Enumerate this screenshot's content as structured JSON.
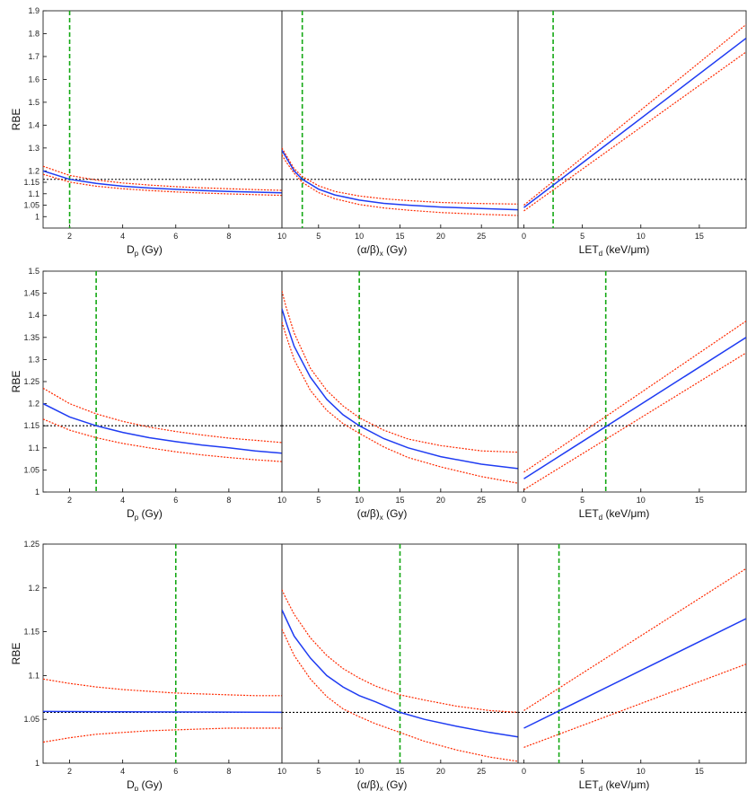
{
  "chart_data": [
    {
      "type": "line",
      "ylabel": "RBE",
      "ylim": [
        0.95,
        1.9
      ],
      "yticks": [
        "1",
        "1.05",
        "1.1",
        "1.15",
        "1.2",
        "1.3",
        "1.4",
        "1.5",
        "1.6",
        "1.7",
        "1.8",
        "1.9"
      ],
      "yticks_v": [
        1,
        1.05,
        1.1,
        1.15,
        1.2,
        1.3,
        1.4,
        1.5,
        1.6,
        1.7,
        1.8,
        1.9
      ],
      "rbe_ref": 1.163,
      "panels": [
        {
          "xlabel": "Dp (Gy)",
          "xlim": [
            1,
            10
          ],
          "xticks": [
            "2",
            "4",
            "6",
            "8",
            "10"
          ],
          "xticks_v": [
            2,
            4,
            6,
            8,
            10
          ],
          "x_marker": 2,
          "series": [
            {
              "role": "mean",
              "x": [
                1,
                2,
                3,
                4,
                5,
                6,
                7,
                8,
                9,
                10
              ],
              "y": [
                1.2,
                1.163,
                1.145,
                1.133,
                1.125,
                1.119,
                1.114,
                1.11,
                1.107,
                1.104
              ]
            },
            {
              "role": "upper",
              "x": [
                1,
                2,
                3,
                4,
                5,
                6,
                7,
                8,
                9,
                10
              ],
              "y": [
                1.22,
                1.18,
                1.16,
                1.147,
                1.138,
                1.131,
                1.126,
                1.122,
                1.118,
                1.115
              ]
            },
            {
              "role": "lower",
              "x": [
                1,
                2,
                3,
                4,
                5,
                6,
                7,
                8,
                9,
                10
              ],
              "y": [
                1.185,
                1.151,
                1.133,
                1.122,
                1.114,
                1.108,
                1.103,
                1.099,
                1.096,
                1.093
              ]
            }
          ]
        },
        {
          "xlabel": "(α/β)x (Gy)",
          "xlim": [
            0.5,
            29.5
          ],
          "xticks": [
            "5",
            "10",
            "15",
            "20",
            "25"
          ],
          "xticks_v": [
            5,
            10,
            15,
            20,
            25
          ],
          "x_marker": 3,
          "series": [
            {
              "role": "mean",
              "x": [
                0.5,
                1,
                2,
                3,
                5,
                7,
                10,
                13,
                16,
                20,
                25,
                29.5
              ],
              "y": [
                1.29,
                1.26,
                1.2,
                1.163,
                1.12,
                1.095,
                1.072,
                1.058,
                1.05,
                1.042,
                1.035,
                1.03
              ]
            },
            {
              "role": "upper",
              "x": [
                0.5,
                1,
                2,
                3,
                5,
                7,
                10,
                13,
                16,
                20,
                25,
                29.5
              ],
              "y": [
                1.3,
                1.27,
                1.21,
                1.175,
                1.135,
                1.11,
                1.09,
                1.078,
                1.07,
                1.062,
                1.057,
                1.055
              ]
            },
            {
              "role": "lower",
              "x": [
                0.5,
                1,
                2,
                3,
                5,
                7,
                10,
                13,
                16,
                20,
                25,
                29.5
              ],
              "y": [
                1.27,
                1.24,
                1.19,
                1.15,
                1.105,
                1.078,
                1.053,
                1.038,
                1.028,
                1.018,
                1.01,
                1.005
              ]
            }
          ]
        },
        {
          "xlabel": "LETd (keV/μm)",
          "xlim": [
            -0.5,
            19
          ],
          "xticks": [
            "0",
            "5",
            "10",
            "15"
          ],
          "xticks_v": [
            0,
            5,
            10,
            15
          ],
          "x_marker": 2.5,
          "series": [
            {
              "role": "mean",
              "x": [
                0,
                19
              ],
              "y": [
                1.04,
                1.78
              ]
            },
            {
              "role": "upper",
              "x": [
                0,
                19
              ],
              "y": [
                1.05,
                1.84
              ]
            },
            {
              "role": "lower",
              "x": [
                0,
                19
              ],
              "y": [
                1.025,
                1.72
              ]
            }
          ]
        }
      ]
    },
    {
      "type": "line",
      "ylabel": "RBE",
      "ylim": [
        1,
        1.5
      ],
      "yticks": [
        "1",
        "1.05",
        "1.1",
        "1.15",
        "1.2",
        "1.25",
        "1.3",
        "1.35",
        "1.4",
        "1.45",
        "1.5"
      ],
      "yticks_v": [
        1,
        1.05,
        1.1,
        1.15,
        1.2,
        1.25,
        1.3,
        1.35,
        1.4,
        1.45,
        1.5
      ],
      "rbe_ref": 1.15,
      "panels": [
        {
          "xlabel": "Dp (Gy)",
          "xlim": [
            1,
            10
          ],
          "xticks": [
            "2",
            "4",
            "6",
            "8",
            "10"
          ],
          "xticks_v": [
            2,
            4,
            6,
            8,
            10
          ],
          "x_marker": 3,
          "series": [
            {
              "role": "mean",
              "x": [
                1,
                2,
                3,
                4,
                5,
                6,
                7,
                8,
                9,
                10
              ],
              "y": [
                1.2,
                1.17,
                1.15,
                1.135,
                1.123,
                1.114,
                1.106,
                1.1,
                1.093,
                1.088
              ]
            },
            {
              "role": "upper",
              "x": [
                1,
                2,
                3,
                4,
                5,
                6,
                7,
                8,
                9,
                10
              ],
              "y": [
                1.235,
                1.2,
                1.177,
                1.16,
                1.147,
                1.137,
                1.129,
                1.122,
                1.117,
                1.112
              ]
            },
            {
              "role": "lower",
              "x": [
                1,
                2,
                3,
                4,
                5,
                6,
                7,
                8,
                9,
                10
              ],
              "y": [
                1.165,
                1.14,
                1.123,
                1.11,
                1.1,
                1.091,
                1.084,
                1.078,
                1.073,
                1.069
              ]
            }
          ]
        },
        {
          "xlabel": "(α/β)x (Gy)",
          "xlim": [
            0.5,
            29.5
          ],
          "xticks": [
            "5",
            "10",
            "15",
            "20",
            "25"
          ],
          "xticks_v": [
            5,
            10,
            15,
            20,
            25
          ],
          "x_marker": 10,
          "series": [
            {
              "role": "mean",
              "x": [
                0.5,
                1,
                2,
                4,
                6,
                8,
                10,
                13,
                16,
                20,
                25,
                29.5
              ],
              "y": [
                1.415,
                1.385,
                1.33,
                1.26,
                1.21,
                1.175,
                1.15,
                1.121,
                1.1,
                1.08,
                1.063,
                1.053
              ]
            },
            {
              "role": "upper",
              "x": [
                0.5,
                1,
                2,
                4,
                6,
                8,
                10,
                13,
                16,
                20,
                25,
                29.5
              ],
              "y": [
                1.455,
                1.42,
                1.36,
                1.28,
                1.23,
                1.195,
                1.168,
                1.14,
                1.12,
                1.105,
                1.093,
                1.09
              ]
            },
            {
              "role": "lower",
              "x": [
                0.5,
                1,
                2,
                4,
                6,
                8,
                10,
                13,
                16,
                20,
                25,
                29.5
              ],
              "y": [
                1.385,
                1.355,
                1.3,
                1.23,
                1.185,
                1.155,
                1.133,
                1.102,
                1.078,
                1.057,
                1.035,
                1.02
              ]
            }
          ]
        },
        {
          "xlabel": "LETd (keV/μm)",
          "xlim": [
            -0.5,
            19
          ],
          "xticks": [
            "0",
            "5",
            "10",
            "15"
          ],
          "xticks_v": [
            0,
            5,
            10,
            15
          ],
          "x_marker": 7,
          "series": [
            {
              "role": "mean",
              "x": [
                0,
                19
              ],
              "y": [
                1.03,
                1.35
              ]
            },
            {
              "role": "upper",
              "x": [
                0,
                19
              ],
              "y": [
                1.045,
                1.387
              ]
            },
            {
              "role": "lower",
              "x": [
                0,
                19
              ],
              "y": [
                1.005,
                1.315
              ]
            }
          ]
        }
      ]
    },
    {
      "type": "line",
      "ylabel": "RBE",
      "ylim": [
        1,
        1.25
      ],
      "yticks": [
        "1",
        "1.05",
        "1.1",
        "1.15",
        "1.2",
        "1.25"
      ],
      "yticks_v": [
        1,
        1.05,
        1.1,
        1.15,
        1.2,
        1.25
      ],
      "rbe_ref": 1.058,
      "panels": [
        {
          "xlabel": "Dp (Gy)",
          "xlim": [
            1,
            10
          ],
          "xticks": [
            "2",
            "4",
            "6",
            "8",
            "10"
          ],
          "xticks_v": [
            2,
            4,
            6,
            8,
            10
          ],
          "x_marker": 6,
          "series": [
            {
              "role": "mean",
              "x": [
                1,
                10
              ],
              "y": [
                1.059,
                1.058
              ]
            },
            {
              "role": "upper",
              "x": [
                1,
                2,
                3,
                4,
                5,
                6,
                7,
                8,
                9,
                10
              ],
              "y": [
                1.096,
                1.091,
                1.087,
                1.084,
                1.082,
                1.08,
                1.079,
                1.078,
                1.077,
                1.077
              ]
            },
            {
              "role": "lower",
              "x": [
                1,
                2,
                3,
                4,
                5,
                6,
                7,
                8,
                9,
                10
              ],
              "y": [
                1.024,
                1.029,
                1.033,
                1.035,
                1.037,
                1.038,
                1.039,
                1.04,
                1.04,
                1.04
              ]
            }
          ]
        },
        {
          "xlabel": "(α/β)x (Gy)",
          "xlim": [
            0.5,
            29.5
          ],
          "xticks": [
            "5",
            "10",
            "15",
            "20",
            "25"
          ],
          "xticks_v": [
            5,
            10,
            15,
            20,
            25
          ],
          "x_marker": 15,
          "series": [
            {
              "role": "mean",
              "x": [
                0.5,
                1,
                2,
                4,
                6,
                8,
                10,
                12,
                15,
                18,
                22,
                26,
                29.5
              ],
              "y": [
                1.175,
                1.165,
                1.145,
                1.12,
                1.1,
                1.087,
                1.077,
                1.07,
                1.058,
                1.05,
                1.042,
                1.035,
                1.03
              ]
            },
            {
              "role": "upper",
              "x": [
                0.5,
                1,
                2,
                4,
                6,
                8,
                10,
                12,
                15,
                18,
                22,
                26,
                29.5
              ],
              "y": [
                1.198,
                1.188,
                1.17,
                1.143,
                1.123,
                1.108,
                1.097,
                1.088,
                1.078,
                1.072,
                1.065,
                1.06,
                1.058
              ]
            },
            {
              "role": "lower",
              "x": [
                0.5,
                1,
                2,
                4,
                6,
                8,
                10,
                12,
                15,
                18,
                22,
                26,
                29.5
              ],
              "y": [
                1.153,
                1.143,
                1.123,
                1.096,
                1.076,
                1.062,
                1.053,
                1.045,
                1.035,
                1.025,
                1.015,
                1.007,
                1.002
              ]
            }
          ]
        },
        {
          "xlabel": "LETd (keV/μm)",
          "xlim": [
            -0.5,
            19
          ],
          "xticks": [
            "0",
            "5",
            "10",
            "15"
          ],
          "xticks_v": [
            0,
            5,
            10,
            15
          ],
          "x_marker": 3,
          "series": [
            {
              "role": "mean",
              "x": [
                0,
                19
              ],
              "y": [
                1.04,
                1.165
              ]
            },
            {
              "role": "upper",
              "x": [
                0,
                19
              ],
              "y": [
                1.06,
                1.222
              ]
            },
            {
              "role": "lower",
              "x": [
                0,
                19
              ],
              "y": [
                1.018,
                1.113
              ]
            }
          ]
        }
      ]
    }
  ],
  "colors": {
    "mean": "#1f3cf2",
    "bound": "#ff2a00",
    "marker": "#14a814",
    "reference": "#000000"
  }
}
